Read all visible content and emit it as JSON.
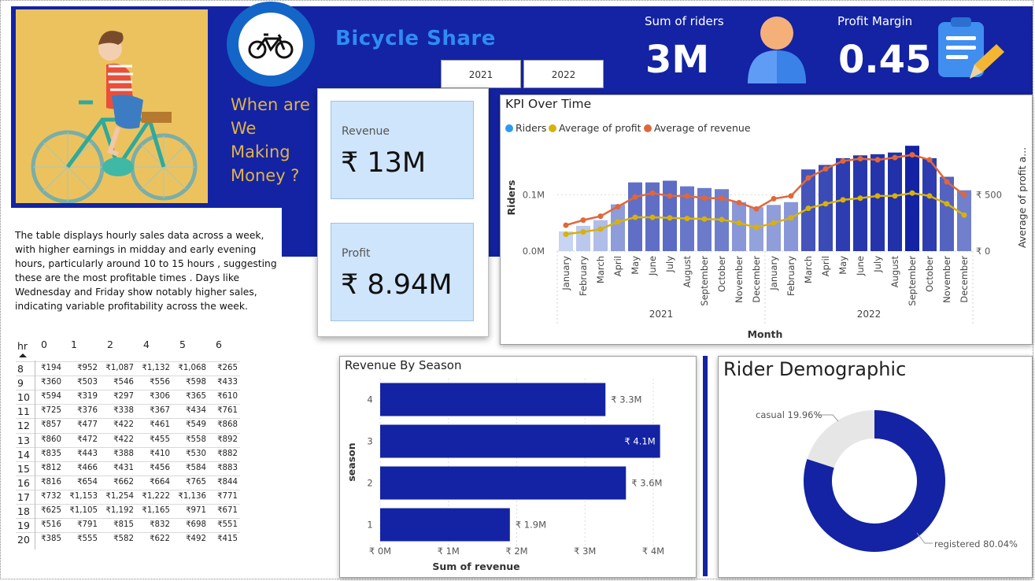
{
  "header": {
    "title": "Bicycle Share",
    "question_lines": [
      "When are",
      "We",
      "Making",
      "Money ?"
    ],
    "year_slicer": [
      "2021",
      "2022"
    ],
    "kpi_riders_label": "Sum of riders",
    "kpi_riders_value": "3M",
    "kpi_margin_label": "Profit Margin",
    "kpi_margin_value": "0.45",
    "icons": [
      "bicycle-icon",
      "person-icon",
      "clipboard-icon"
    ]
  },
  "description": "The table displays hourly sales data across a week, with higher earnings in midday and early evening hours, particularly around 10 to 15 hours , suggesting these are the most profitable times . Days like Wednesday and Friday show notably higher sales, indicating variable profitability across the week.",
  "cards": {
    "revenue_label": "Revenue",
    "revenue_value": "₹ 13M",
    "profit_label": "Profit",
    "profit_value": "₹ 8.94M"
  },
  "matrix": {
    "corner": "hr",
    "columns": [
      "0",
      "1",
      "2",
      "4",
      "5",
      "6"
    ],
    "rows": [
      {
        "hr": "8",
        "cells": [
          "₹194",
          "₹952",
          "₹1,087",
          "₹1,132",
          "₹1,068",
          "₹265"
        ]
      },
      {
        "hr": "9",
        "cells": [
          "₹360",
          "₹503",
          "₹546",
          "₹556",
          "₹598",
          "₹433"
        ]
      },
      {
        "hr": "10",
        "cells": [
          "₹594",
          "₹319",
          "₹297",
          "₹306",
          "₹365",
          "₹610"
        ]
      },
      {
        "hr": "11",
        "cells": [
          "₹725",
          "₹376",
          "₹338",
          "₹367",
          "₹434",
          "₹761"
        ]
      },
      {
        "hr": "12",
        "cells": [
          "₹857",
          "₹477",
          "₹422",
          "₹461",
          "₹549",
          "₹868"
        ]
      },
      {
        "hr": "13",
        "cells": [
          "₹860",
          "₹472",
          "₹422",
          "₹455",
          "₹558",
          "₹892"
        ]
      },
      {
        "hr": "14",
        "cells": [
          "₹835",
          "₹443",
          "₹388",
          "₹410",
          "₹530",
          "₹882"
        ]
      },
      {
        "hr": "15",
        "cells": [
          "₹812",
          "₹466",
          "₹431",
          "₹456",
          "₹584",
          "₹883"
        ]
      },
      {
        "hr": "16",
        "cells": [
          "₹816",
          "₹654",
          "₹662",
          "₹664",
          "₹765",
          "₹844"
        ]
      },
      {
        "hr": "17",
        "cells": [
          "₹732",
          "₹1,153",
          "₹1,254",
          "₹1,222",
          "₹1,136",
          "₹771"
        ]
      },
      {
        "hr": "18",
        "cells": [
          "₹625",
          "₹1,105",
          "₹1,192",
          "₹1,165",
          "₹971",
          "₹671"
        ]
      },
      {
        "hr": "19",
        "cells": [
          "₹516",
          "₹791",
          "₹815",
          "₹832",
          "₹698",
          "₹551"
        ]
      },
      {
        "hr": "20",
        "cells": [
          "₹385",
          "₹555",
          "₹582",
          "₹622",
          "₹492",
          "₹415"
        ]
      }
    ]
  },
  "chart_data": [
    {
      "type": "bar",
      "title": "KPI Over Time",
      "legend": [
        "Riders",
        "Average of profit",
        "Average of revenue"
      ],
      "legend_position": "top-left",
      "xlabel": "Month",
      "ylabel": "Riders",
      "y2label": "Average of profit a...",
      "year_groups": [
        "2021",
        "2022"
      ],
      "categories": [
        "January",
        "February",
        "March",
        "April",
        "May",
        "June",
        "July",
        "August",
        "September",
        "October",
        "November",
        "December",
        "January",
        "February",
        "March",
        "April",
        "May",
        "June",
        "July",
        "August",
        "September",
        "October",
        "November",
        "December"
      ],
      "y_ticks": [
        "0.0M",
        "0.1M"
      ],
      "y_max": 0.19,
      "y2_ticks": [
        "₹ 0",
        "₹ 500"
      ],
      "y2_max": 950,
      "grid": true,
      "colors": {
        "riders": "#2b9af3",
        "profit": "#d8b20a",
        "revenue": "#e0673a",
        "bar_gradient": [
          "#c7d4f3",
          "#1323a3"
        ]
      },
      "series": [
        {
          "name": "Riders",
          "values": [
            0.035,
            0.045,
            0.055,
            0.083,
            0.122,
            0.122,
            0.125,
            0.115,
            0.112,
            0.11,
            0.087,
            0.078,
            0.082,
            0.087,
            0.145,
            0.153,
            0.165,
            0.17,
            0.172,
            0.175,
            0.187,
            0.165,
            0.132,
            0.108
          ]
        },
        {
          "name": "Average of profit",
          "values": [
            150,
            170,
            195,
            260,
            300,
            300,
            295,
            290,
            285,
            280,
            250,
            210,
            250,
            295,
            380,
            420,
            455,
            470,
            490,
            490,
            515,
            490,
            420,
            320
          ]
        },
        {
          "name": "Average of revenue",
          "values": [
            230,
            275,
            310,
            395,
            480,
            515,
            490,
            490,
            470,
            470,
            430,
            375,
            465,
            490,
            650,
            730,
            800,
            820,
            810,
            830,
            855,
            810,
            615,
            500
          ]
        }
      ]
    },
    {
      "type": "bar",
      "orientation": "horizontal",
      "title": "Revenue By Season",
      "xlabel": "Sum of revenue",
      "ylabel": "season",
      "categories": [
        "4",
        "3",
        "2",
        "1"
      ],
      "values": [
        3.3,
        4.1,
        3.6,
        1.9
      ],
      "data_labels": [
        "₹ 3.3M",
        "₹ 4.1M",
        "₹ 3.6M",
        "₹ 1.9M"
      ],
      "x_ticks": [
        "₹ 0M",
        "₹ 1M",
        "₹ 2M",
        "₹ 3M",
        "₹ 4M"
      ],
      "xlim": [
        0,
        4.3
      ],
      "color": "#1323a3"
    },
    {
      "type": "pie",
      "title": "Rider Demographic",
      "donut": true,
      "slices": [
        {
          "name": "registered",
          "value": 80.04,
          "label": "registered 80.04%",
          "color": "#1323a3"
        },
        {
          "name": "casual",
          "value": 19.96,
          "label": "casual 19.96%",
          "color": "#e6e6e6"
        }
      ]
    }
  ]
}
